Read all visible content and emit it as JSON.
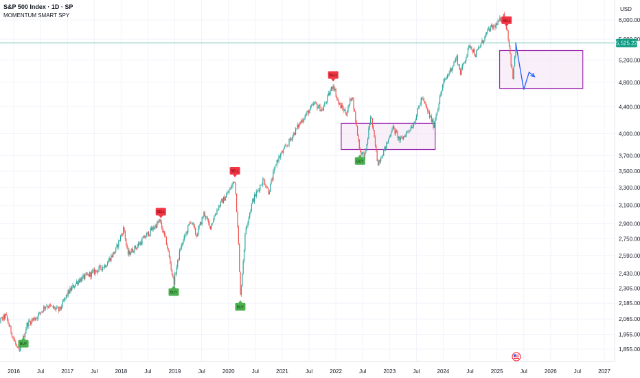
{
  "header": {
    "title": "S&P 500 Index · 1D · SP",
    "indicator": "MOMENTUM SMART SPY"
  },
  "colors": {
    "up": "#26a69a",
    "down": "#ef5350",
    "buy": "#4caf50",
    "sell": "#f23645",
    "box": "#9c27b0",
    "box_fill": "#f3e5f5",
    "projection": "#2962ff",
    "price_line": "#089981",
    "grid": "#f0f3fa"
  },
  "chart_data": {
    "type": "candlestick",
    "price_scale": "log",
    "currency": "USD",
    "current_price": "5,525.22",
    "ylim": [
      1855,
      6000
    ],
    "y_ticks": [
      {
        "value": 1855,
        "label": "1,855.00"
      },
      {
        "value": 1955,
        "label": "1,955.00"
      },
      {
        "value": 2065,
        "label": "2,065.00"
      },
      {
        "value": 2185,
        "label": "2,185.00"
      },
      {
        "value": 2305,
        "label": "2,305.00"
      },
      {
        "value": 2430,
        "label": "2,430.00"
      },
      {
        "value": 2590,
        "label": "2,590.00"
      },
      {
        "value": 2750,
        "label": "2,750.00"
      },
      {
        "value": 2900,
        "label": "2,900.00"
      },
      {
        "value": 3100,
        "label": "3,100.00"
      },
      {
        "value": 3300,
        "label": "3,300.00"
      },
      {
        "value": 3500,
        "label": "3,500.00"
      },
      {
        "value": 3700,
        "label": "3,700.00"
      },
      {
        "value": 4000,
        "label": "4,000.00"
      },
      {
        "value": 4400,
        "label": "4,400.00"
      },
      {
        "value": 4800,
        "label": "4,800.00"
      },
      {
        "value": 5200,
        "label": "5,200.00"
      },
      {
        "value": 5600,
        "label": "5,600.00"
      },
      {
        "value": 6000,
        "label": "6,000.00"
      }
    ],
    "x_ticks": [
      {
        "date": 2016.0,
        "label": "2016"
      },
      {
        "date": 2016.5,
        "label": "Jul"
      },
      {
        "date": 2017.0,
        "label": "2017"
      },
      {
        "date": 2017.5,
        "label": "Jul"
      },
      {
        "date": 2018.0,
        "label": "2018"
      },
      {
        "date": 2018.5,
        "label": "Jul"
      },
      {
        "date": 2019.0,
        "label": "2019"
      },
      {
        "date": 2019.5,
        "label": "Jul"
      },
      {
        "date": 2020.0,
        "label": "2020"
      },
      {
        "date": 2020.5,
        "label": "Jul"
      },
      {
        "date": 2021.0,
        "label": "2021"
      },
      {
        "date": 2021.5,
        "label": "Jul"
      },
      {
        "date": 2022.0,
        "label": "2022"
      },
      {
        "date": 2022.5,
        "label": "Jul"
      },
      {
        "date": 2023.0,
        "label": "2023"
      },
      {
        "date": 2023.5,
        "label": "Jul"
      },
      {
        "date": 2024.0,
        "label": "2024"
      },
      {
        "date": 2024.5,
        "label": "Jul"
      },
      {
        "date": 2025.0,
        "label": "2025"
      },
      {
        "date": 2025.5,
        "label": "Jul"
      },
      {
        "date": 2026.0,
        "label": "2026"
      },
      {
        "date": 2026.5,
        "label": "Jul"
      },
      {
        "date": 2027.0,
        "label": "2027"
      }
    ],
    "series": [
      {
        "path": [
          [
            2015.6,
            2000
          ],
          [
            2015.85,
            2090
          ],
          [
            2016.05,
            1870
          ],
          [
            2016.1,
            1830
          ],
          [
            2016.25,
            2030
          ],
          [
            2016.45,
            2090
          ],
          [
            2016.6,
            2170
          ],
          [
            2016.85,
            2130
          ],
          [
            2017.0,
            2260
          ],
          [
            2017.2,
            2370
          ],
          [
            2017.45,
            2430
          ],
          [
            2017.7,
            2500
          ],
          [
            2017.9,
            2640
          ],
          [
            2018.05,
            2860
          ],
          [
            2018.12,
            2600
          ],
          [
            2018.3,
            2680
          ],
          [
            2018.5,
            2800
          ],
          [
            2018.72,
            2930
          ],
          [
            2018.85,
            2700
          ],
          [
            2018.98,
            2350
          ],
          [
            2019.1,
            2650
          ],
          [
            2019.3,
            2940
          ],
          [
            2019.4,
            2780
          ],
          [
            2019.55,
            3020
          ],
          [
            2019.65,
            2860
          ],
          [
            2019.8,
            3070
          ],
          [
            2020.0,
            3250
          ],
          [
            2020.12,
            3390
          ],
          [
            2020.18,
            2800
          ],
          [
            2020.22,
            2230
          ],
          [
            2020.32,
            2850
          ],
          [
            2020.45,
            3150
          ],
          [
            2020.65,
            3400
          ],
          [
            2020.75,
            3250
          ],
          [
            2020.9,
            3630
          ],
          [
            2021.1,
            3850
          ],
          [
            2021.35,
            4180
          ],
          [
            2021.6,
            4450
          ],
          [
            2021.75,
            4350
          ],
          [
            2021.95,
            4770
          ],
          [
            2022.05,
            4450
          ],
          [
            2022.2,
            4300
          ],
          [
            2022.3,
            4600
          ],
          [
            2022.45,
            3750
          ],
          [
            2022.55,
            3700
          ],
          [
            2022.65,
            4280
          ],
          [
            2022.78,
            3600
          ],
          [
            2022.95,
            3850
          ],
          [
            2023.05,
            4100
          ],
          [
            2023.2,
            3900
          ],
          [
            2023.45,
            4150
          ],
          [
            2023.6,
            4550
          ],
          [
            2023.82,
            4120
          ],
          [
            2024.0,
            4780
          ],
          [
            2024.25,
            5250
          ],
          [
            2024.32,
            4970
          ],
          [
            2024.5,
            5500
          ],
          [
            2024.6,
            5300
          ],
          [
            2024.85,
            5800
          ],
          [
            2025.0,
            5900
          ],
          [
            2025.12,
            6100
          ],
          [
            2025.2,
            5750
          ],
          [
            2025.28,
            5000
          ],
          [
            2025.3,
            4850
          ],
          [
            2025.35,
            5525.22
          ]
        ],
        "candle_count": 560
      }
    ],
    "signals": [
      {
        "date": 2016.18,
        "price": 1955,
        "label": "BUY",
        "side": "buy"
      },
      {
        "date": 2018.74,
        "price": 2930,
        "label": "SELL",
        "side": "sell"
      },
      {
        "date": 2018.98,
        "price": 2350,
        "label": "BUY",
        "side": "buy"
      },
      {
        "date": 2020.12,
        "price": 3390,
        "label": "SELL",
        "side": "sell"
      },
      {
        "date": 2020.22,
        "price": 2230,
        "label": "BUY",
        "side": "buy"
      },
      {
        "date": 2021.95,
        "price": 4770,
        "label": "SELL",
        "side": "sell"
      },
      {
        "date": 2022.45,
        "price": 3750,
        "label": "BUY",
        "side": "buy"
      },
      {
        "date": 2025.18,
        "price": 5800,
        "label": "SELL",
        "side": "sell"
      }
    ],
    "zones": [
      {
        "x_start": 2022.1,
        "x_end": 2023.85,
        "y_low": 3780,
        "y_high": 4150
      },
      {
        "x_start": 2025.05,
        "x_end": 2026.6,
        "y_low": 4700,
        "y_high": 5380
      }
    ],
    "projection": [
      [
        2025.35,
        5525.22
      ],
      [
        2025.5,
        4680
      ],
      [
        2025.6,
        4980
      ],
      [
        2025.7,
        4900
      ]
    ]
  }
}
